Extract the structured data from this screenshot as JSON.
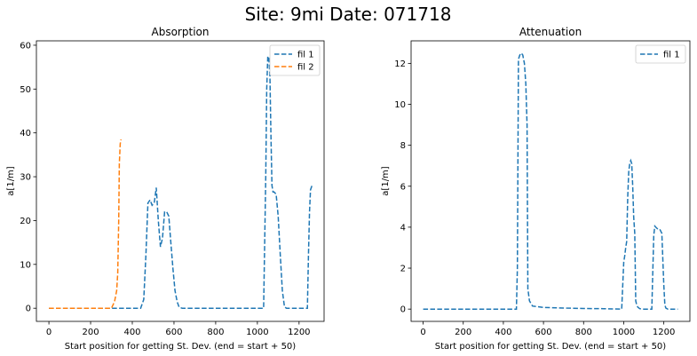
{
  "figure": {
    "suptitle": "Site: 9mi Date: 071718"
  },
  "chart_data": [
    {
      "type": "line",
      "title": "Absorption",
      "xlabel": "Start position for getting St. Dev. (end = start + 50)",
      "ylabel": "a[1/m]",
      "xlim": [
        -60,
        1320
      ],
      "ylim": [
        -3,
        61
      ],
      "xticks": [
        0,
        200,
        400,
        600,
        800,
        1000,
        1200
      ],
      "yticks": [
        0,
        10,
        20,
        30,
        40,
        50,
        60
      ],
      "legend": "top-right",
      "series": [
        {
          "name": "fil 1",
          "color": "#1f77b4",
          "x": [
            0,
            200,
            400,
            440,
            455,
            465,
            475,
            485,
            495,
            505,
            515,
            525,
            535,
            545,
            555,
            565,
            575,
            585,
            595,
            605,
            615,
            625,
            640,
            700,
            800,
            900,
            1000,
            1030,
            1040,
            1045,
            1050,
            1055,
            1060,
            1065,
            1070,
            1075,
            1080,
            1090,
            1100,
            1110,
            1120,
            1130,
            1140,
            1150,
            1200,
            1240,
            1245,
            1250,
            1255,
            1262
          ],
          "y": [
            0,
            0,
            0,
            0,
            2,
            12,
            24,
            24.7,
            23.5,
            24,
            27.5,
            20,
            14,
            16,
            22,
            22,
            21,
            15,
            9,
            4,
            1.5,
            0.2,
            0,
            0,
            0,
            0,
            0,
            0,
            30,
            50,
            57.5,
            57,
            53,
            40,
            28,
            26.5,
            26.5,
            26,
            21,
            12,
            4,
            0.3,
            0,
            0,
            0,
            0,
            12,
            22,
            27,
            28
          ]
        },
        {
          "name": "fil 2",
          "color": "#ff7f0e",
          "x": [
            0,
            100,
            200,
            300,
            315,
            325,
            330,
            335,
            338,
            342,
            346
          ],
          "y": [
            0,
            0,
            0,
            0,
            1.5,
            4,
            8,
            20,
            33,
            37.5,
            38.5
          ]
        }
      ]
    },
    {
      "type": "line",
      "title": "Attenuation",
      "xlabel": "Start position for getting St. Dev. (end = start + 50)",
      "ylabel": "a[1/m]",
      "xlim": [
        -60,
        1330
      ],
      "ylim": [
        -0.6,
        13.1
      ],
      "xticks": [
        0,
        200,
        400,
        600,
        800,
        1000,
        1200
      ],
      "yticks": [
        0,
        2,
        4,
        6,
        8,
        10,
        12
      ],
      "legend": "top-right",
      "series": [
        {
          "name": "fil 1",
          "color": "#1f77b4",
          "x": [
            0,
            200,
            400,
            465,
            470,
            475,
            482,
            490,
            497,
            505,
            512,
            518,
            522,
            530,
            545,
            600,
            700,
            800,
            900,
            990,
            1000,
            1005,
            1010,
            1015,
            1020,
            1025,
            1030,
            1035,
            1040,
            1045,
            1050,
            1055,
            1060,
            1065,
            1070,
            1080,
            1100,
            1120,
            1140,
            1150,
            1155,
            1160,
            1170,
            1180,
            1190,
            1200,
            1205,
            1210,
            1220,
            1250,
            1270
          ],
          "y": [
            0,
            0,
            0,
            0,
            2,
            12.2,
            12.4,
            12.5,
            12.4,
            12,
            11,
            9,
            1,
            0.4,
            0.15,
            0.08,
            0.05,
            0.03,
            0.02,
            0,
            2.3,
            2.6,
            3,
            3.3,
            5.5,
            6.7,
            7.1,
            7.25,
            7.1,
            6,
            4.5,
            3.7,
            0.4,
            0.2,
            0.1,
            0.02,
            0,
            0,
            0,
            3.6,
            4.05,
            4,
            3.9,
            3.9,
            3.7,
            1.2,
            0.2,
            0.05,
            0,
            0,
            0
          ]
        }
      ]
    }
  ]
}
